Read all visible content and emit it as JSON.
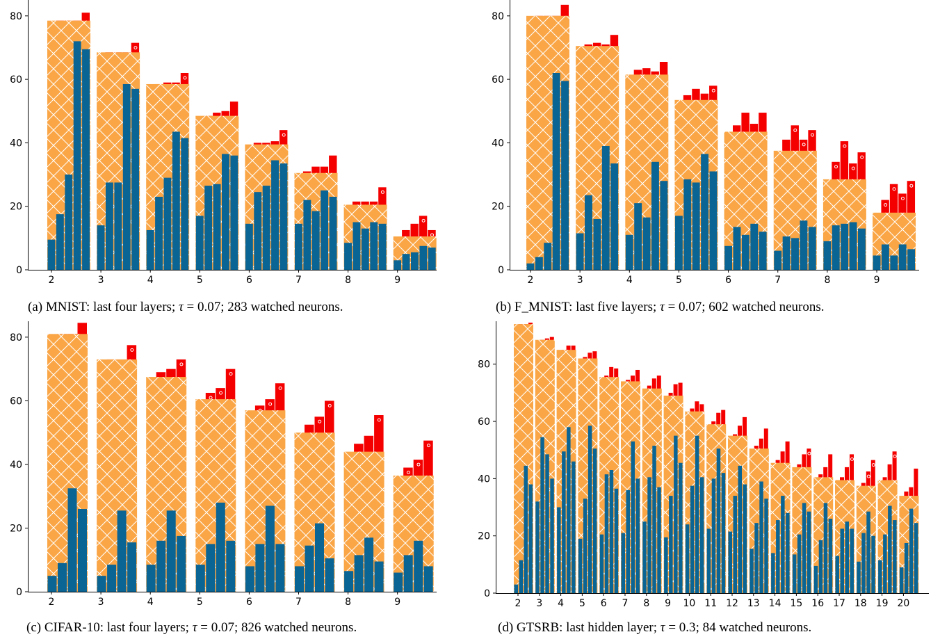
{
  "colors": {
    "blue": "#0a6494",
    "orange": "#faa646",
    "red": "#f50000",
    "hatch": "#ffffff"
  },
  "chart_data": [
    {
      "type": "bar",
      "panel": "a",
      "caption": {
        "prefix": "(a) MNIST: last four layers; ",
        "tau_symbol": "τ",
        "tau_eq": " = 0.07",
        "suffix": "; 283 watched neurons."
      },
      "categories": [
        "2",
        "3",
        "4",
        "5",
        "6",
        "7",
        "8",
        "9"
      ],
      "ylim": [
        0,
        85
      ],
      "yticks": [
        0,
        20,
        40,
        60,
        80
      ],
      "groups": [
        {
          "bg": 78.5,
          "blue": [
            9.5,
            17.5,
            30,
            72,
            69.5
          ],
          "red": [
            78.5,
            78.5,
            78.5,
            81
          ],
          "dots": [
            false,
            false,
            true,
            false
          ]
        },
        {
          "bg": 68.5,
          "blue": [
            14,
            27.5,
            27.5,
            58.5,
            57
          ],
          "red": [
            68.5,
            68.5,
            68.5,
            71.5
          ],
          "dots": [
            false,
            false,
            false,
            true
          ]
        },
        {
          "bg": 58.5,
          "blue": [
            12.5,
            23,
            29,
            43.5,
            41.5
          ],
          "red": [
            58.5,
            59,
            59,
            62
          ],
          "dots": [
            false,
            false,
            false,
            true
          ]
        },
        {
          "bg": 48.5,
          "blue": [
            17,
            26.5,
            27,
            36.5,
            36
          ],
          "red": [
            48.5,
            49.5,
            50,
            53
          ],
          "dots": [
            false,
            false,
            false,
            false
          ]
        },
        {
          "bg": 39.5,
          "blue": [
            14.5,
            24.5,
            26.5,
            34.5,
            33.5
          ],
          "red": [
            40,
            40,
            40.5,
            44
          ],
          "dots": [
            false,
            false,
            false,
            true
          ]
        },
        {
          "bg": 30.5,
          "blue": [
            14.5,
            22,
            18.5,
            25,
            23
          ],
          "red": [
            31,
            32.5,
            32.5,
            36
          ],
          "dots": [
            false,
            false,
            false,
            false
          ]
        },
        {
          "bg": 20.5,
          "blue": [
            8.5,
            15,
            13,
            15,
            14.5
          ],
          "red": [
            21.5,
            21.5,
            21.5,
            26
          ],
          "dots": [
            true,
            true,
            true,
            true
          ]
        },
        {
          "bg": 10.5,
          "blue": [
            3,
            5,
            5.5,
            7.5,
            7
          ],
          "red": [
            12.5,
            14.5,
            17,
            12.5
          ],
          "dots": [
            false,
            false,
            true,
            true
          ]
        }
      ]
    },
    {
      "type": "bar",
      "panel": "b",
      "caption": {
        "prefix": "(b) F_MNIST: last five layers; ",
        "tau_symbol": "τ",
        "tau_eq": " = 0.07",
        "suffix": "; 602 watched neurons."
      },
      "categories": [
        "2",
        "3",
        "4",
        "5",
        "6",
        "7",
        "8",
        "9"
      ],
      "ylim": [
        0,
        85
      ],
      "yticks": [
        0,
        20,
        40,
        60,
        80
      ],
      "groups": [
        {
          "bg": 80,
          "blue": [
            2,
            4,
            8.5,
            62,
            59.5
          ],
          "red": [
            80,
            80,
            80,
            83.5
          ],
          "dots": [
            false,
            false,
            false,
            false
          ]
        },
        {
          "bg": 70.5,
          "blue": [
            11.5,
            23.5,
            16,
            39,
            33.5
          ],
          "red": [
            71,
            71.5,
            71,
            74
          ],
          "dots": [
            false,
            false,
            false,
            false
          ]
        },
        {
          "bg": 61.5,
          "blue": [
            11,
            21,
            16.5,
            34,
            28
          ],
          "red": [
            63,
            63.5,
            62.5,
            65.5
          ],
          "dots": [
            false,
            false,
            false,
            false
          ]
        },
        {
          "bg": 53.5,
          "blue": [
            17,
            28.5,
            27.5,
            36.5,
            31
          ],
          "red": [
            55,
            57,
            55.5,
            58
          ],
          "dots": [
            false,
            false,
            false,
            true
          ]
        },
        {
          "bg": 43.5,
          "blue": [
            7.5,
            13.5,
            11,
            14.5,
            12
          ],
          "red": [
            45.5,
            49.5,
            46,
            49.5
          ],
          "dots": [
            false,
            false,
            false,
            false
          ]
        },
        {
          "bg": 37.5,
          "blue": [
            6,
            10.5,
            10,
            15.5,
            13.5
          ],
          "red": [
            41,
            45.5,
            41,
            44
          ],
          "dots": [
            false,
            true,
            true,
            true
          ]
        },
        {
          "bg": 28.5,
          "blue": [
            9,
            14,
            14.5,
            15,
            13
          ],
          "red": [
            34,
            40.5,
            33.5,
            37
          ],
          "dots": [
            true,
            true,
            true,
            true
          ]
        },
        {
          "bg": 18,
          "blue": [
            4.5,
            8,
            4.5,
            8,
            6.5
          ],
          "red": [
            22,
            27,
            24,
            28
          ],
          "dots": [
            true,
            true,
            true,
            true
          ]
        }
      ]
    },
    {
      "type": "bar",
      "panel": "c",
      "caption": {
        "prefix": "(c) CIFAR-10: last four layers; ",
        "tau_symbol": "τ",
        "tau_eq": " = 0.07",
        "suffix": "; 826 watched neurons."
      },
      "categories": [
        "2",
        "3",
        "4",
        "5",
        "6",
        "7",
        "8",
        "9"
      ],
      "ylim": [
        0,
        85
      ],
      "yticks": [
        0,
        20,
        40,
        60,
        80
      ],
      "groups": [
        {
          "bg": 81,
          "blue": [
            5,
            9,
            32.5,
            26
          ],
          "red": [
            81,
            81,
            84.5
          ],
          "dots": [
            false,
            false,
            false
          ]
        },
        {
          "bg": 73,
          "blue": [
            5,
            8.5,
            25.5,
            15.5
          ],
          "red": [
            73,
            73,
            77.5
          ],
          "dots": [
            false,
            false,
            true
          ]
        },
        {
          "bg": 67.5,
          "blue": [
            8.5,
            16,
            25.5,
            17.5
          ],
          "red": [
            69,
            70,
            73
          ],
          "dots": [
            false,
            false,
            true
          ]
        },
        {
          "bg": 60.5,
          "blue": [
            8.5,
            15,
            28,
            16
          ],
          "red": [
            62.5,
            64,
            70
          ],
          "dots": [
            true,
            true,
            true
          ]
        },
        {
          "bg": 57,
          "blue": [
            8,
            15,
            27,
            15
          ],
          "red": [
            58.5,
            60.5,
            65.5
          ],
          "dots": [
            true,
            true,
            true
          ]
        },
        {
          "bg": 50,
          "blue": [
            8,
            14.5,
            21.5,
            10.5
          ],
          "red": [
            52.5,
            55,
            60
          ],
          "dots": [
            false,
            true,
            true
          ]
        },
        {
          "bg": 44,
          "blue": [
            6.5,
            11.5,
            17,
            9.5
          ],
          "red": [
            46.5,
            49,
            55.5
          ],
          "dots": [
            false,
            false,
            true
          ]
        },
        {
          "bg": 36.5,
          "blue": [
            6,
            11.5,
            16,
            8
          ],
          "red": [
            39,
            41.5,
            47.5
          ],
          "dots": [
            true,
            true,
            true
          ]
        }
      ]
    },
    {
      "type": "bar",
      "panel": "d",
      "caption": {
        "prefix": "(d) GTSRB: last hidden layer; ",
        "tau_symbol": "τ",
        "tau_eq": " = 0.3",
        "suffix": "; 84 watched neurons."
      },
      "categories": [
        "2",
        "3",
        "4",
        "5",
        "6",
        "7",
        "8",
        "9",
        "10",
        "11",
        "12",
        "13",
        "14",
        "15",
        "16",
        "17",
        "18",
        "19",
        "20"
      ],
      "ylim": [
        0,
        95
      ],
      "yticks": [
        0,
        20,
        40,
        60,
        80
      ],
      "groups": [
        {
          "bg": 94,
          "blue": [
            3,
            11.5,
            44.5,
            38
          ],
          "red": [
            94,
            94,
            94.5
          ],
          "dots": [
            false,
            false,
            false
          ]
        },
        {
          "bg": 88.5,
          "blue": [
            32,
            54.5,
            48.5,
            40
          ],
          "red": [
            88.5,
            89,
            89.5
          ],
          "dots": [
            false,
            false,
            false
          ]
        },
        {
          "bg": 85,
          "blue": [
            30,
            49.5,
            58,
            46
          ],
          "red": [
            85,
            86.5,
            86.5
          ],
          "dots": [
            false,
            false,
            false
          ]
        },
        {
          "bg": 82,
          "blue": [
            19,
            33,
            58.5,
            50.5
          ],
          "red": [
            82.5,
            84,
            84.5
          ],
          "dots": [
            false,
            false,
            false
          ]
        },
        {
          "bg": 75.5,
          "blue": [
            20.5,
            41.5,
            43,
            36.5
          ],
          "red": [
            76,
            79,
            78.5
          ],
          "dots": [
            false,
            false,
            false
          ]
        },
        {
          "bg": 74,
          "blue": [
            21,
            36,
            53,
            40
          ],
          "red": [
            74.5,
            76,
            78
          ],
          "dots": [
            false,
            false,
            false
          ]
        },
        {
          "bg": 71.5,
          "blue": [
            25,
            40.5,
            51.5,
            37
          ],
          "red": [
            72.5,
            75,
            76
          ],
          "dots": [
            false,
            false,
            false
          ]
        },
        {
          "bg": 69,
          "blue": [
            19.5,
            34,
            55,
            45.5
          ],
          "red": [
            70,
            73,
            73.5
          ],
          "dots": [
            false,
            false,
            false
          ]
        },
        {
          "bg": 63.5,
          "blue": [
            24,
            37.5,
            55,
            40.5
          ],
          "red": [
            64.5,
            67,
            66
          ],
          "dots": [
            false,
            false,
            false
          ]
        },
        {
          "bg": 59,
          "blue": [
            22.5,
            40,
            50.5,
            42
          ],
          "red": [
            60,
            63,
            64
          ],
          "dots": [
            false,
            false,
            false
          ]
        },
        {
          "bg": 55,
          "blue": [
            21.5,
            34,
            44.5,
            38
          ],
          "red": [
            55.5,
            58.5,
            61.5
          ],
          "dots": [
            false,
            false,
            false
          ]
        },
        {
          "bg": 50.5,
          "blue": [
            15.5,
            24.5,
            39,
            33
          ],
          "red": [
            51.5,
            54,
            57.5
          ],
          "dots": [
            false,
            false,
            false
          ]
        },
        {
          "bg": 45.5,
          "blue": [
            14,
            25.5,
            34,
            28
          ],
          "red": [
            46.5,
            49.5,
            53
          ],
          "dots": [
            false,
            false,
            false
          ]
        },
        {
          "bg": 44,
          "blue": [
            13.5,
            20.5,
            31.5,
            28.5
          ],
          "red": [
            45,
            48.5,
            50.5
          ],
          "dots": [
            false,
            false,
            true
          ]
        },
        {
          "bg": 40.5,
          "blue": [
            9.5,
            18.5,
            31.5,
            26
          ],
          "red": [
            41.5,
            44,
            48.5
          ],
          "dots": [
            false,
            false,
            false
          ]
        },
        {
          "bg": 39.5,
          "blue": [
            13,
            22.5,
            25,
            22.5
          ],
          "red": [
            40.5,
            44,
            48.5
          ],
          "dots": [
            false,
            false,
            true
          ]
        },
        {
          "bg": 37.5,
          "blue": [
            11,
            21,
            28.5,
            20
          ],
          "red": [
            38.5,
            42.5,
            46.5
          ],
          "dots": [
            false,
            true,
            true
          ]
        },
        {
          "bg": 39.5,
          "blue": [
            11.5,
            20.5,
            30.5,
            25.5
          ],
          "red": [
            40.5,
            45,
            49.5
          ],
          "dots": [
            false,
            false,
            true
          ]
        },
        {
          "bg": 34,
          "blue": [
            9,
            17.5,
            29.5,
            24.5
          ],
          "red": [
            35.5,
            37,
            43.5
          ],
          "dots": [
            false,
            false,
            false
          ]
        }
      ]
    }
  ]
}
